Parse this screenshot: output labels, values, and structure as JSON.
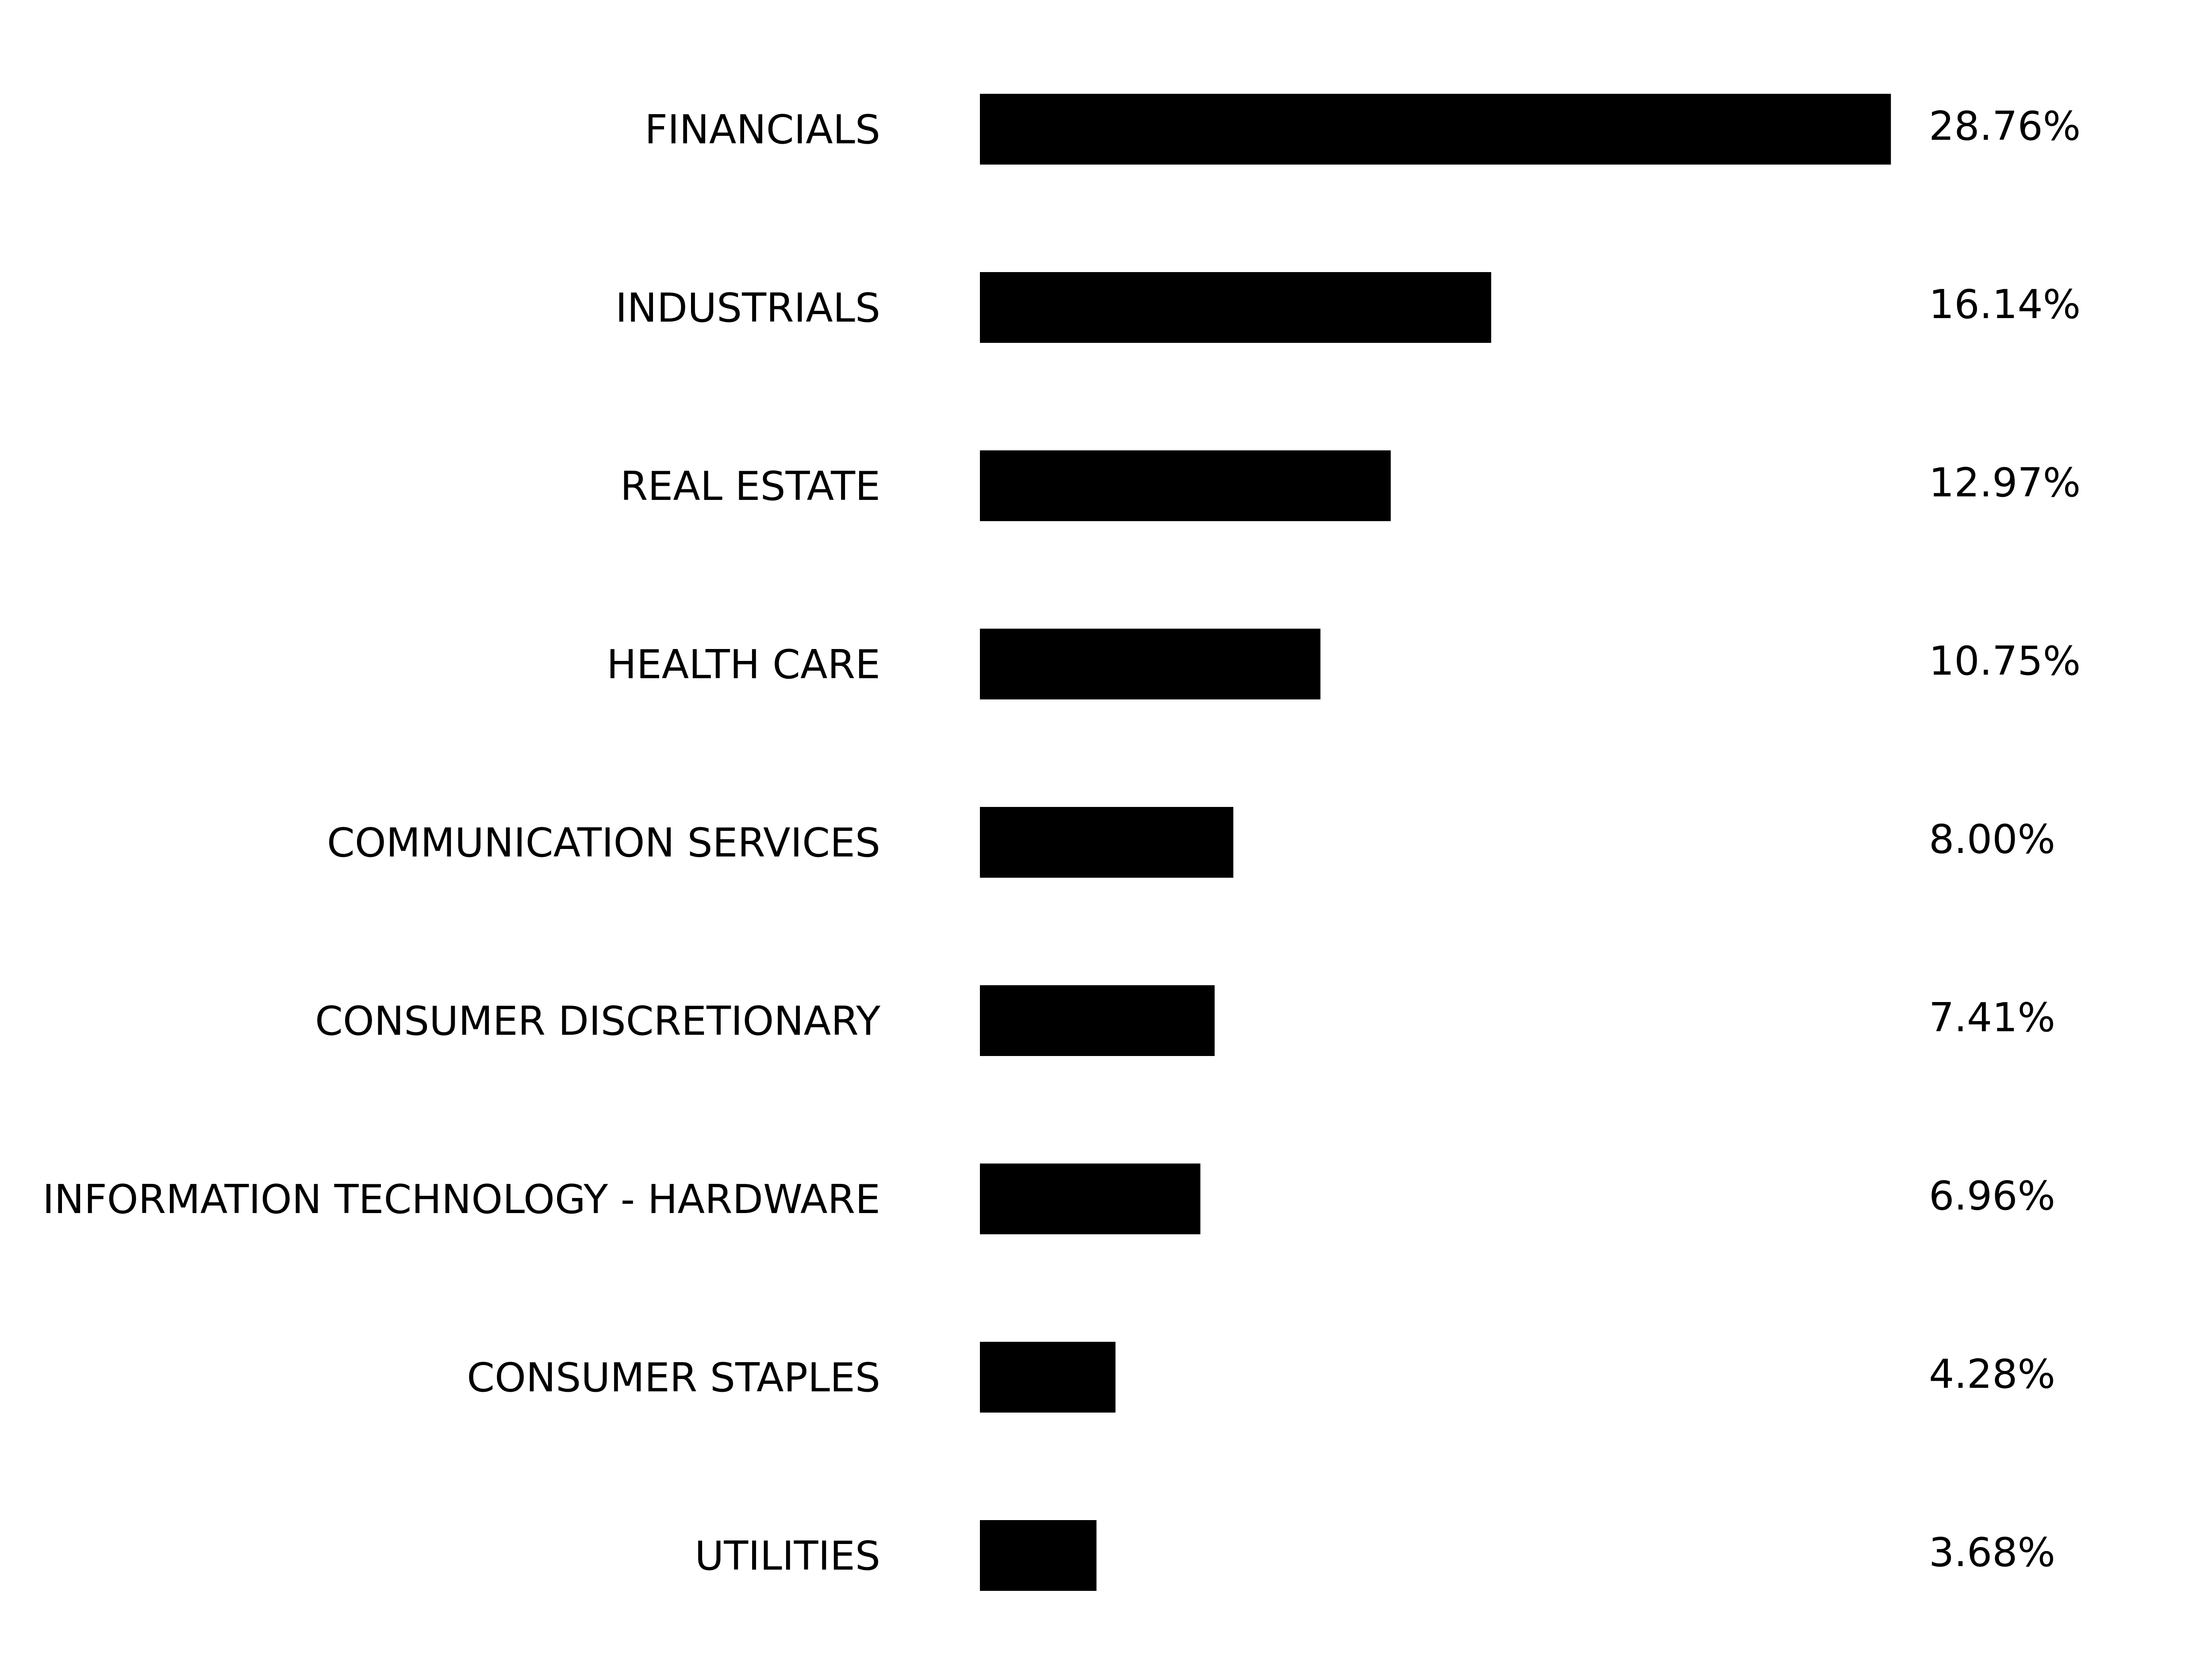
{
  "chart_data": {
    "type": "bar",
    "orientation": "horizontal",
    "categories": [
      "FINANCIALS",
      "INDUSTRIALS",
      "REAL ESTATE",
      "HEALTH CARE",
      "COMMUNICATION SERVICES",
      "CONSUMER DISCRETIONARY",
      "INFORMATION TECHNOLOGY - HARDWARE",
      "CONSUMER STAPLES",
      "UTILITIES"
    ],
    "values": [
      28.76,
      16.14,
      12.97,
      10.75,
      8.0,
      7.41,
      6.96,
      4.28,
      3.68
    ],
    "value_labels": [
      "28.76%",
      "16.14%",
      "12.97%",
      "10.75%",
      "8.00%",
      "7.41%",
      "6.96%",
      "4.28%",
      "3.68%"
    ],
    "bar_color": "#000000",
    "grid": false,
    "legend": "none"
  }
}
